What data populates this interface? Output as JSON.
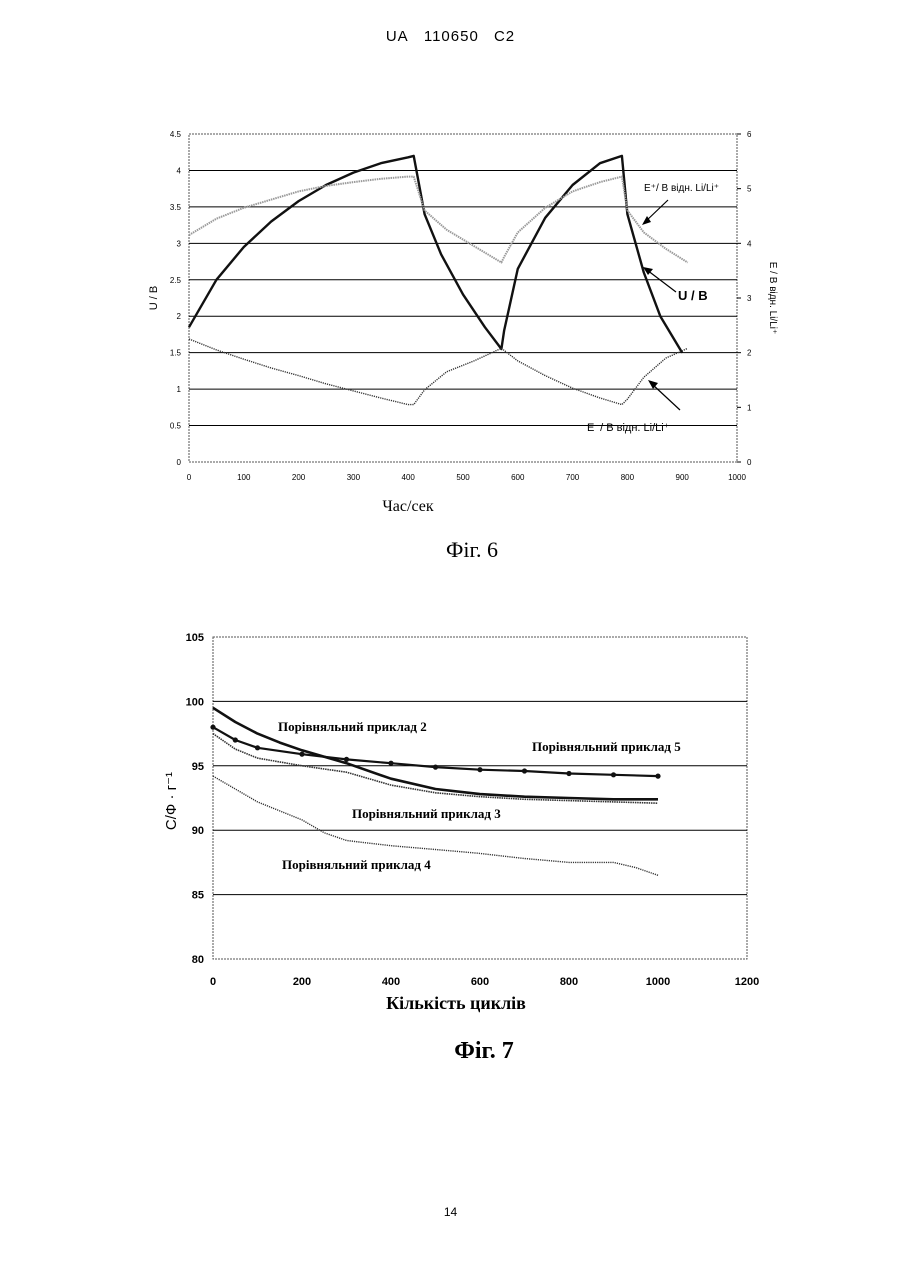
{
  "header": {
    "country": "UA",
    "number": "110650",
    "kind": "C2"
  },
  "page_number": "14",
  "fig6": {
    "caption": "Фіг. 6",
    "xlabel": "Час/сек",
    "ylabel_left": "U / B",
    "ylabel_right": "E / B відн. Li/Li⁺",
    "labels": {
      "e_plus": "E⁺/ B відн. Li/Li⁺",
      "u": "U / B",
      "e_minus": "E⁻/ B відн. Li/Li⁺"
    },
    "chart_data": {
      "type": "line",
      "xlim": [
        0,
        1000
      ],
      "ylim_left": [
        0,
        4.5
      ],
      "ylim_right": [
        0,
        6
      ],
      "x_ticks": [
        "0",
        "100",
        "200",
        "300",
        "400",
        "500",
        "600",
        "700",
        "800",
        "900",
        "1000"
      ],
      "y_ticks_left": [
        "0",
        "0.5",
        "1",
        "1.5",
        "2",
        "2.5",
        "3",
        "3.5",
        "4",
        "4.5"
      ],
      "y_ticks_right": [
        "0",
        "1",
        "2",
        "3",
        "4",
        "5",
        "6"
      ],
      "grid": "horizontal",
      "series": [
        {
          "name": "U / B",
          "axis": "left",
          "x": [
            0,
            50,
            100,
            150,
            200,
            250,
            300,
            350,
            400,
            410,
            430,
            460,
            500,
            540,
            570,
            575,
            600,
            650,
            700,
            750,
            790,
            800,
            830,
            860,
            900
          ],
          "y": [
            1.85,
            2.5,
            2.95,
            3.3,
            3.58,
            3.8,
            3.97,
            4.1,
            4.18,
            4.2,
            3.4,
            2.85,
            2.3,
            1.85,
            1.55,
            1.8,
            2.65,
            3.35,
            3.8,
            4.1,
            4.2,
            3.4,
            2.6,
            2.0,
            1.5
          ]
        },
        {
          "name": "E⁺/ B відн. Li/Li⁺",
          "axis": "right",
          "x": [
            0,
            50,
            100,
            150,
            200,
            250,
            300,
            350,
            400,
            410,
            430,
            470,
            520,
            570,
            575,
            600,
            650,
            700,
            750,
            790,
            800,
            830,
            870,
            910
          ],
          "y": [
            4.15,
            4.45,
            4.65,
            4.8,
            4.95,
            5.05,
            5.12,
            5.18,
            5.22,
            5.22,
            4.6,
            4.25,
            3.95,
            3.65,
            3.75,
            4.2,
            4.65,
            4.95,
            5.12,
            5.22,
            4.6,
            4.2,
            3.9,
            3.65
          ]
        },
        {
          "name": "E⁻/ B відн. Li/Li⁺",
          "axis": "right",
          "x": [
            0,
            50,
            100,
            150,
            200,
            250,
            300,
            350,
            400,
            410,
            430,
            470,
            520,
            570,
            600,
            650,
            700,
            750,
            790,
            800,
            830,
            870,
            910
          ],
          "y": [
            2.25,
            2.05,
            1.88,
            1.72,
            1.58,
            1.43,
            1.3,
            1.17,
            1.05,
            1.05,
            1.32,
            1.65,
            1.85,
            2.08,
            1.85,
            1.58,
            1.35,
            1.17,
            1.05,
            1.15,
            1.55,
            1.9,
            2.08
          ]
        }
      ]
    }
  },
  "fig7": {
    "caption": "Фіг. 7",
    "xlabel": "Кількість циклів",
    "ylabel": "C/Ф · г⁻¹",
    "chart_data": {
      "type": "line",
      "xlim": [
        0,
        1200
      ],
      "ylim": [
        80,
        105
      ],
      "x_ticks": [
        "0",
        "200",
        "400",
        "600",
        "800",
        "1000",
        "1200"
      ],
      "y_ticks": [
        "80",
        "85",
        "90",
        "95",
        "100",
        "105"
      ],
      "grid": "horizontal",
      "series": [
        {
          "name": "Порівняльний приклад 2",
          "x": [
            0,
            50,
            100,
            150,
            200,
            250,
            300,
            400,
            500,
            600,
            700,
            800,
            900,
            1000
          ],
          "y": [
            99.5,
            98.4,
            97.5,
            96.8,
            96.2,
            95.7,
            95.2,
            94.0,
            93.2,
            92.8,
            92.6,
            92.5,
            92.4,
            92.4
          ]
        },
        {
          "name": "Порівняльний приклад 5",
          "x": [
            0,
            50,
            100,
            200,
            300,
            400,
            500,
            600,
            700,
            800,
            900,
            1000
          ],
          "y": [
            98.0,
            97.0,
            96.4,
            95.9,
            95.5,
            95.2,
            94.9,
            94.7,
            94.6,
            94.4,
            94.3,
            94.2
          ]
        },
        {
          "name": "Порівняльний приклад 3",
          "x": [
            0,
            50,
            100,
            200,
            300,
            400,
            500,
            600,
            700,
            800,
            900,
            1000
          ],
          "y": [
            97.5,
            96.3,
            95.6,
            95.0,
            94.5,
            93.5,
            92.9,
            92.6,
            92.4,
            92.3,
            92.2,
            92.1
          ]
        },
        {
          "name": "Порівняльний приклад 4",
          "x": [
            0,
            50,
            100,
            200,
            250,
            300,
            400,
            500,
            600,
            700,
            800,
            850,
            900,
            950,
            1000
          ],
          "y": [
            94.2,
            93.2,
            92.2,
            90.8,
            89.8,
            89.2,
            88.8,
            88.5,
            88.2,
            87.8,
            87.5,
            87.5,
            87.5,
            87.1,
            86.5
          ]
        }
      ]
    }
  }
}
